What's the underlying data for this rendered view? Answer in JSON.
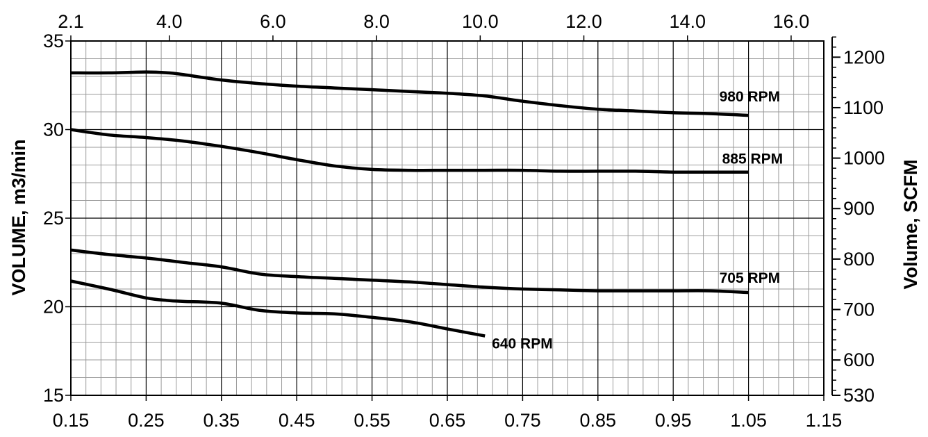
{
  "chart_data": {
    "type": "line",
    "title": "",
    "xlabel": "",
    "ylabel": "VOLUME, m3/min",
    "y2label": "Volume, SCFM",
    "xlim": [
      0.15,
      1.15
    ],
    "ylim": [
      15,
      35
    ],
    "grid": true,
    "x_ticks": [
      "0.15",
      "0.25",
      "0.35",
      "0.45",
      "0.55",
      "0.65",
      "0.75",
      "0.85",
      "0.95",
      "1.05",
      "1.15"
    ],
    "y_ticks": [
      "15",
      "20",
      "25",
      "30",
      "35"
    ],
    "top_axis": {
      "ticks": [
        {
          "label": "2.1",
          "value": 2.1
        },
        {
          "label": "4.0",
          "value": 4.0
        },
        {
          "label": "6.0",
          "value": 6.0
        },
        {
          "label": "8.0",
          "value": 8.0
        },
        {
          "label": "10.0",
          "value": 10.0
        },
        {
          "label": "12.0",
          "value": 12.0
        },
        {
          "label": "14.0",
          "value": 14.0
        },
        {
          "label": "16.0",
          "value": 16.0
        }
      ]
    },
    "right_axis": {
      "ticks": [
        {
          "label": "530",
          "value": 530
        },
        {
          "label": "600",
          "value": 600
        },
        {
          "label": "700",
          "value": 700
        },
        {
          "label": "800",
          "value": 800
        },
        {
          "label": "900",
          "value": 900
        },
        {
          "label": "1000",
          "value": 1000
        },
        {
          "label": "1100",
          "value": 1100
        },
        {
          "label": "1200",
          "value": 1200
        }
      ],
      "minor_step": 20
    },
    "series": [
      {
        "name": "980 RPM",
        "x": [
          0.15,
          0.2,
          0.25,
          0.28,
          0.3,
          0.35,
          0.4,
          0.45,
          0.5,
          0.55,
          0.6,
          0.65,
          0.7,
          0.75,
          0.8,
          0.85,
          0.9,
          0.95,
          1.0,
          1.05
        ],
        "y": [
          33.2,
          33.2,
          33.25,
          33.2,
          33.1,
          32.8,
          32.6,
          32.45,
          32.35,
          32.25,
          32.15,
          32.05,
          31.9,
          31.6,
          31.35,
          31.15,
          31.05,
          30.95,
          30.9,
          30.8
        ]
      },
      {
        "name": "885 RPM",
        "x": [
          0.15,
          0.2,
          0.25,
          0.3,
          0.35,
          0.4,
          0.45,
          0.5,
          0.55,
          0.6,
          0.65,
          0.7,
          0.75,
          0.8,
          0.85,
          0.9,
          0.95,
          1.0,
          1.05
        ],
        "y": [
          30.0,
          29.7,
          29.55,
          29.35,
          29.05,
          28.7,
          28.3,
          27.95,
          27.75,
          27.7,
          27.7,
          27.7,
          27.7,
          27.65,
          27.65,
          27.65,
          27.6,
          27.6,
          27.6
        ]
      },
      {
        "name": "705 RPM",
        "x": [
          0.15,
          0.2,
          0.25,
          0.3,
          0.35,
          0.4,
          0.45,
          0.5,
          0.55,
          0.6,
          0.65,
          0.7,
          0.75,
          0.8,
          0.85,
          0.9,
          0.95,
          1.0,
          1.05
        ],
        "y": [
          23.2,
          22.95,
          22.75,
          22.5,
          22.25,
          21.85,
          21.7,
          21.6,
          21.5,
          21.4,
          21.25,
          21.1,
          21.0,
          20.95,
          20.9,
          20.9,
          20.9,
          20.9,
          20.8
        ]
      },
      {
        "name": "640 RPM",
        "x": [
          0.15,
          0.2,
          0.25,
          0.28,
          0.3,
          0.35,
          0.4,
          0.45,
          0.5,
          0.55,
          0.6,
          0.65,
          0.7
        ],
        "y": [
          21.45,
          21.0,
          20.5,
          20.35,
          20.3,
          20.2,
          19.8,
          19.65,
          19.6,
          19.4,
          19.15,
          18.75,
          18.35
        ]
      }
    ]
  }
}
